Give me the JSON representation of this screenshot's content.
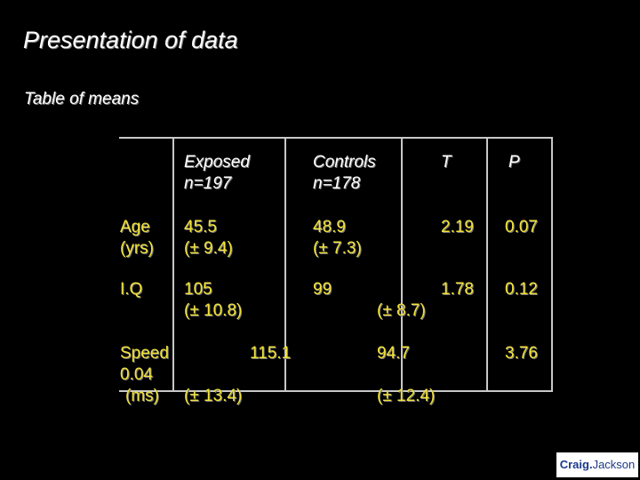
{
  "slide": {
    "title": "Presentation of data",
    "subtitle": "Table of means"
  },
  "table": {
    "headers": {
      "exposed": [
        "Exposed",
        "n=197"
      ],
      "controls": [
        "Controls",
        "n=178"
      ],
      "t": "T",
      "p": "P"
    },
    "rows": {
      "age": {
        "label": [
          "Age",
          "(yrs)"
        ],
        "exposed": [
          "45.5",
          "(± 9.4)"
        ],
        "controls": [
          "48.9",
          "(± 7.3)"
        ],
        "t": "2.19",
        "p": "0.07"
      },
      "iq": {
        "label": "I.Q",
        "exposed": [
          "105",
          "(± 10.8)"
        ],
        "controls_mean": "99",
        "controls_sd": "(± 8.7)",
        "t": "1.78",
        "p": "0.12"
      },
      "speed": {
        "label": "Speed",
        "p_line": "0.04",
        "unit": "(ms)",
        "exposed_mean": "115.1",
        "exposed_sd": "(± 13.4)",
        "controls_mean": "94.7",
        "controls_sd": "(± 12.4)",
        "t": "3.76"
      }
    }
  },
  "logo": {
    "part1": "Craig.",
    "part2": "Jackson"
  },
  "colors": {
    "background": "#000000",
    "text": "#ffffff",
    "values": "#f2e23a",
    "rules": "#c8c8c8"
  }
}
